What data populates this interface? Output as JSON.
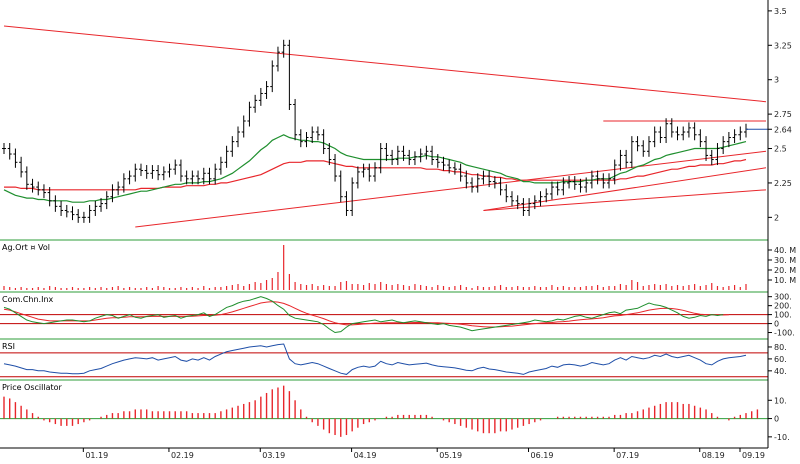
{
  "chart_data": {
    "type": "stock-chart",
    "x_months": [
      "01.19",
      "02.19",
      "03.19",
      "04.19",
      "05.19",
      "06.19",
      "07.19",
      "08.19",
      "09.19"
    ],
    "colors": {
      "up_bar": "#000000",
      "trend_line": "#e8262b",
      "ma_long": "#e8262b",
      "ma_short": "#1f8f2e",
      "volume": "#e8262b",
      "rsi": "#1f4fa8",
      "osc_pos": "#e8262b",
      "osc_neg": "#e8262b",
      "separator": "#2e9e3a",
      "level_line": "#c00000"
    },
    "price": {
      "yticks": [
        2,
        2.25,
        2.5,
        2.64,
        2.75,
        3,
        3.25,
        3.5
      ],
      "ylim": [
        1.85,
        3.55
      ],
      "last_value": 2.64,
      "close_series": [
        2.5,
        2.46,
        2.4,
        2.33,
        2.24,
        2.22,
        2.2,
        2.18,
        2.12,
        2.08,
        2.05,
        2.04,
        2.02,
        2.0,
        2.0,
        2.05,
        2.08,
        2.1,
        2.15,
        2.2,
        2.22,
        2.28,
        2.3,
        2.35,
        2.34,
        2.32,
        2.34,
        2.31,
        2.33,
        2.35,
        2.38,
        2.3,
        2.28,
        2.3,
        2.28,
        2.32,
        2.28,
        2.35,
        2.4,
        2.48,
        2.55,
        2.62,
        2.7,
        2.8,
        2.85,
        2.9,
        2.95,
        3.1,
        3.2,
        3.25,
        2.82,
        2.6,
        2.55,
        2.58,
        2.62,
        2.6,
        2.5,
        2.42,
        2.3,
        2.15,
        2.05,
        2.25,
        2.33,
        2.35,
        2.3,
        2.36,
        2.5,
        2.45,
        2.42,
        2.48,
        2.45,
        2.42,
        2.44,
        2.46,
        2.48,
        2.42,
        2.4,
        2.38,
        2.36,
        2.35,
        2.3,
        2.25,
        2.22,
        2.28,
        2.3,
        2.26,
        2.25,
        2.2,
        2.15,
        2.12,
        2.1,
        2.05,
        2.1,
        2.12,
        2.15,
        2.17,
        2.22,
        2.2,
        2.25,
        2.26,
        2.24,
        2.22,
        2.25,
        2.3,
        2.28,
        2.25,
        2.28,
        2.38,
        2.45,
        2.4,
        2.55,
        2.52,
        2.48,
        2.55,
        2.62,
        2.58,
        2.68,
        2.62,
        2.6,
        2.62,
        2.65,
        2.6,
        2.55,
        2.45,
        2.42,
        2.5,
        2.55,
        2.58,
        2.6,
        2.62,
        2.64
      ],
      "ma_long_series": [
        2.22,
        2.22,
        2.22,
        2.21,
        2.21,
        2.21,
        2.2,
        2.2,
        2.2,
        2.2,
        2.2,
        2.2,
        2.2,
        2.2,
        2.2,
        2.2,
        2.2,
        2.2,
        2.2,
        2.2,
        2.2,
        2.2,
        2.2,
        2.2,
        2.21,
        2.21,
        2.21,
        2.21,
        2.22,
        2.22,
        2.22,
        2.22,
        2.23,
        2.23,
        2.23,
        2.23,
        2.24,
        2.24,
        2.25,
        2.25,
        2.26,
        2.27,
        2.28,
        2.29,
        2.3,
        2.31,
        2.33,
        2.35,
        2.37,
        2.39,
        2.4,
        2.4,
        2.4,
        2.41,
        2.41,
        2.41,
        2.41,
        2.4,
        2.39,
        2.38,
        2.37,
        2.37,
        2.36,
        2.36,
        2.36,
        2.36,
        2.36,
        2.36,
        2.36,
        2.36,
        2.36,
        2.36,
        2.36,
        2.36,
        2.35,
        2.35,
        2.35,
        2.34,
        2.34,
        2.33,
        2.33,
        2.32,
        2.31,
        2.31,
        2.3,
        2.3,
        2.29,
        2.29,
        2.28,
        2.28,
        2.27,
        2.27,
        2.27,
        2.27,
        2.27,
        2.27,
        2.27,
        2.27,
        2.27,
        2.27,
        2.27,
        2.27,
        2.27,
        2.27,
        2.27,
        2.27,
        2.27,
        2.27,
        2.28,
        2.28,
        2.29,
        2.3,
        2.3,
        2.31,
        2.32,
        2.33,
        2.34,
        2.35,
        2.35,
        2.36,
        2.37,
        2.37,
        2.38,
        2.38,
        2.38,
        2.39,
        2.39,
        2.4,
        2.41,
        2.41,
        2.42
      ],
      "ma_short_series": [
        2.2,
        2.18,
        2.16,
        2.15,
        2.14,
        2.14,
        2.13,
        2.13,
        2.12,
        2.12,
        2.12,
        2.12,
        2.11,
        2.11,
        2.11,
        2.12,
        2.12,
        2.13,
        2.13,
        2.14,
        2.15,
        2.16,
        2.17,
        2.18,
        2.19,
        2.19,
        2.2,
        2.21,
        2.22,
        2.23,
        2.24,
        2.24,
        2.25,
        2.25,
        2.25,
        2.26,
        2.26,
        2.27,
        2.28,
        2.3,
        2.32,
        2.35,
        2.38,
        2.41,
        2.45,
        2.49,
        2.52,
        2.56,
        2.58,
        2.6,
        2.58,
        2.57,
        2.56,
        2.56,
        2.55,
        2.55,
        2.54,
        2.52,
        2.5,
        2.47,
        2.45,
        2.44,
        2.43,
        2.42,
        2.42,
        2.42,
        2.42,
        2.42,
        2.42,
        2.43,
        2.43,
        2.43,
        2.44,
        2.44,
        2.45,
        2.44,
        2.44,
        2.43,
        2.42,
        2.41,
        2.4,
        2.38,
        2.37,
        2.36,
        2.35,
        2.34,
        2.33,
        2.32,
        2.3,
        2.29,
        2.28,
        2.26,
        2.26,
        2.25,
        2.25,
        2.25,
        2.25,
        2.25,
        2.26,
        2.26,
        2.26,
        2.26,
        2.27,
        2.27,
        2.28,
        2.28,
        2.28,
        2.3,
        2.32,
        2.33,
        2.35,
        2.37,
        2.38,
        2.4,
        2.42,
        2.43,
        2.45,
        2.46,
        2.47,
        2.48,
        2.49,
        2.5,
        2.5,
        2.5,
        2.5,
        2.5,
        2.51,
        2.52,
        2.53,
        2.54,
        2.55
      ],
      "trend_lines": [
        {
          "from": [
            0,
            3.39
          ],
          "to": [
            130,
            2.84
          ]
        },
        {
          "from": [
            23,
            1.93
          ],
          "to": [
            130,
            2.48
          ]
        },
        {
          "from": [
            84,
            2.05
          ],
          "to": [
            130,
            2.2
          ]
        },
        {
          "from": [
            84,
            2.05
          ],
          "to": [
            130,
            2.36
          ]
        }
      ],
      "resistance": {
        "value": 2.7,
        "from": 105,
        "to": 130
      }
    },
    "volume": {
      "label": "Ag.Ort ¤ Vol",
      "yticks": [
        "10. M",
        "20. M",
        "30. M",
        "40. M"
      ],
      "ylim": [
        0,
        48
      ],
      "values": [
        4,
        3,
        2,
        3,
        2,
        2,
        3,
        2,
        4,
        3,
        2,
        2,
        3,
        2,
        2,
        3,
        2,
        3,
        2,
        3,
        4,
        2,
        3,
        2,
        2,
        3,
        2,
        4,
        3,
        2,
        2,
        3,
        2,
        3,
        2,
        4,
        2,
        3,
        3,
        4,
        5,
        6,
        4,
        6,
        8,
        7,
        10,
        12,
        18,
        45,
        16,
        8,
        6,
        5,
        6,
        4,
        5,
        4,
        4,
        8,
        9,
        6,
        6,
        5,
        7,
        6,
        8,
        6,
        5,
        6,
        5,
        4,
        6,
        5,
        4,
        3,
        5,
        4,
        3,
        4,
        5,
        3,
        2,
        4,
        3,
        3,
        4,
        5,
        3,
        3,
        4,
        3,
        3,
        4,
        3,
        3,
        5,
        3,
        4,
        3,
        3,
        3,
        4,
        4,
        5,
        3,
        4,
        4,
        6,
        5,
        10,
        8,
        4,
        5,
        6,
        5,
        6,
        4,
        5,
        4,
        5,
        6,
        4,
        5,
        7,
        4,
        3,
        4,
        5,
        3,
        6
      ]
    },
    "cci": {
      "label": "Com.Chn.Inx",
      "yticks": [
        "-100.",
        "0",
        "100.",
        "200.",
        "300."
      ],
      "ylim": [
        -150,
        330
      ],
      "level": 100,
      "zero": 0,
      "series": [
        180,
        160,
        120,
        80,
        40,
        20,
        10,
        0,
        10,
        20,
        30,
        40,
        40,
        30,
        20,
        30,
        60,
        80,
        100,
        90,
        60,
        80,
        100,
        70,
        60,
        80,
        90,
        100,
        70,
        80,
        90,
        60,
        80,
        90,
        100,
        120,
        80,
        100,
        140,
        180,
        200,
        230,
        250,
        260,
        280,
        300,
        280,
        250,
        200,
        160,
        90,
        60,
        50,
        40,
        30,
        20,
        -10,
        -60,
        -100,
        -90,
        -40,
        0,
        10,
        20,
        30,
        40,
        20,
        30,
        40,
        20,
        10,
        20,
        30,
        20,
        10,
        0,
        -10,
        0,
        -20,
        -30,
        -40,
        -60,
        -80,
        -70,
        -60,
        -50,
        -40,
        -30,
        -20,
        -10,
        0,
        10,
        20,
        40,
        30,
        20,
        30,
        50,
        40,
        60,
        80,
        90,
        70,
        60,
        80,
        100,
        120,
        130,
        110,
        150,
        160,
        170,
        200,
        230,
        210,
        200,
        180,
        150,
        120,
        80,
        60,
        70,
        90,
        80,
        100,
        90,
        100
      ],
      "signal": [
        160,
        150,
        130,
        110,
        90,
        70,
        50,
        40,
        30,
        30,
        30,
        30,
        30,
        30,
        30,
        30,
        40,
        50,
        60,
        65,
        65,
        70,
        75,
        75,
        75,
        78,
        80,
        82,
        80,
        80,
        82,
        80,
        80,
        82,
        85,
        90,
        90,
        92,
        100,
        115,
        130,
        150,
        170,
        190,
        210,
        230,
        240,
        245,
        240,
        225,
        200,
        170,
        140,
        115,
        95,
        75,
        55,
        30,
        10,
        -5,
        -15,
        -15,
        -10,
        -5,
        0,
        5,
        5,
        8,
        10,
        10,
        10,
        10,
        12,
        12,
        12,
        10,
        8,
        5,
        2,
        -2,
        -8,
        -15,
        -25,
        -30,
        -35,
        -38,
        -38,
        -36,
        -32,
        -28,
        -22,
        -15,
        -8,
        0,
        5,
        8,
        12,
        18,
        22,
        28,
        35,
        42,
        48,
        52,
        58,
        65,
        75,
        85,
        90,
        100,
        110,
        120,
        135,
        150,
        160,
        168,
        170,
        168,
        160,
        148,
        130,
        115,
        105,
        100,
        98,
        97,
        96,
        98
      ]
    },
    "rsi": {
      "label": "RSI",
      "yticks": [
        "40.",
        "60.",
        "80."
      ],
      "ylim": [
        28,
        90
      ],
      "upper": 70,
      "lower": 30,
      "series": [
        52,
        50,
        48,
        45,
        42,
        42,
        40,
        40,
        38,
        37,
        36,
        36,
        35,
        35,
        36,
        40,
        42,
        44,
        48,
        52,
        55,
        58,
        60,
        62,
        61,
        60,
        62,
        58,
        60,
        62,
        64,
        58,
        56,
        60,
        58,
        62,
        58,
        64,
        68,
        72,
        74,
        76,
        78,
        80,
        81,
        82,
        80,
        82,
        84,
        85,
        60,
        52,
        50,
        52,
        54,
        52,
        48,
        44,
        40,
        36,
        34,
        42,
        46,
        48,
        46,
        48,
        56,
        52,
        50,
        54,
        52,
        50,
        51,
        52,
        53,
        50,
        48,
        47,
        46,
        45,
        43,
        41,
        40,
        44,
        46,
        43,
        42,
        40,
        38,
        37,
        36,
        34,
        38,
        40,
        42,
        44,
        48,
        46,
        50,
        51,
        50,
        48,
        50,
        54,
        52,
        50,
        52,
        58,
        62,
        58,
        64,
        62,
        60,
        62,
        66,
        64,
        68,
        64,
        62,
        64,
        66,
        62,
        58,
        52,
        50,
        56,
        60,
        62,
        63,
        64,
        66
      ]
    },
    "osc": {
      "label": "Price Oscillator",
      "yticks": [
        "-10.",
        "0",
        "10."
      ],
      "ylim": [
        -15,
        20
      ],
      "values": [
        12,
        11,
        9,
        7,
        5,
        3,
        1,
        -1,
        -2,
        -3,
        -4,
        -4,
        -4,
        -3,
        -2,
        -1,
        0,
        1,
        2,
        3,
        3,
        4,
        4,
        5,
        5,
        5,
        4,
        4,
        4,
        4,
        4,
        4,
        4,
        3,
        3,
        3,
        3,
        3,
        4,
        5,
        6,
        7,
        8,
        9,
        10,
        12,
        14,
        16,
        17,
        18,
        15,
        10,
        5,
        1,
        -2,
        -4,
        -6,
        -8,
        -9,
        -10,
        -9,
        -7,
        -5,
        -3,
        -2,
        -1,
        0,
        1,
        1,
        2,
        2,
        2,
        2,
        2,
        2,
        1,
        0,
        -1,
        -2,
        -3,
        -4,
        -5,
        -6,
        -7,
        -8,
        -8,
        -8,
        -7,
        -7,
        -6,
        -5,
        -4,
        -3,
        -2,
        -1,
        0,
        0,
        1,
        1,
        1,
        1,
        1,
        1,
        1,
        1,
        1,
        1,
        2,
        2,
        3,
        3,
        4,
        5,
        6,
        7,
        8,
        9,
        9,
        9,
        8,
        8,
        7,
        6,
        5,
        3,
        1,
        0,
        -1,
        1,
        2,
        3,
        4,
        5
      ]
    }
  }
}
